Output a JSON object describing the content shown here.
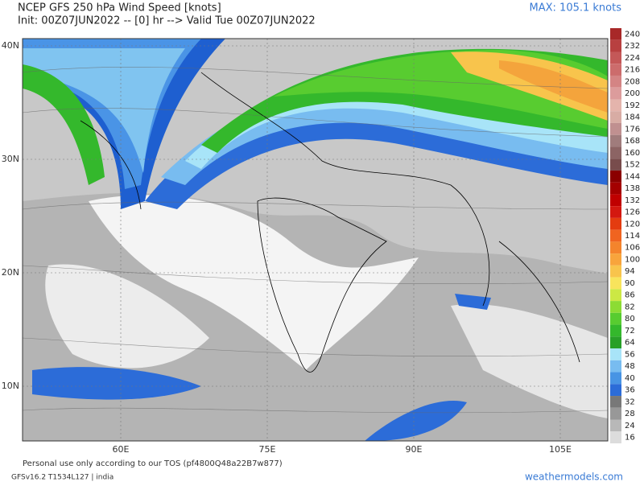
{
  "header": {
    "title": "NCEP GFS 250 hPa Wind Speed [knots]",
    "subtitle": "Init: 00Z07JUN2022 -- [0] hr --> Valid Tue 00Z07JUN2022",
    "max": "MAX: 105.1 knots"
  },
  "map": {
    "lat_labels": [
      "40N",
      "30N",
      "20N",
      "10N"
    ],
    "lon_labels": [
      "60E",
      "75E",
      "90E",
      "105E"
    ]
  },
  "colorbar": {
    "levels": [
      240,
      232,
      224,
      216,
      208,
      200,
      192,
      184,
      176,
      168,
      160,
      152,
      144,
      138,
      132,
      126,
      120,
      114,
      106,
      100,
      94,
      90,
      86,
      82,
      80,
      72,
      64,
      56,
      48,
      40,
      36,
      32,
      28,
      24,
      16
    ],
    "colors": [
      "#a82828",
      "#b84040",
      "#c45858",
      "#cc6c6c",
      "#d48484",
      "#dc9c9c",
      "#e4b4ac",
      "#d8aca4",
      "#c09090",
      "#a07c7c",
      "#8c6464",
      "#784c4c",
      "#8b0000",
      "#a40000",
      "#c00000",
      "#d41810",
      "#e43c10",
      "#f06420",
      "#f4842c",
      "#f8a43c",
      "#f8c44c",
      "#f8e45c",
      "#cce844",
      "#8cdc34",
      "#58cc30",
      "#34b82c",
      "#28a028",
      "#a8e4f8",
      "#78bcf0",
      "#4894e4",
      "#2c6cd8",
      "#787878",
      "#989898",
      "#b8b8b8",
      "#dcdcdc"
    ]
  },
  "footer": {
    "tos": "Personal use only according to our TOS (pf4800Q48a22B7w877)",
    "model": "GFSv16.2 T1534L127 | india",
    "site": "weathermodels.com"
  }
}
